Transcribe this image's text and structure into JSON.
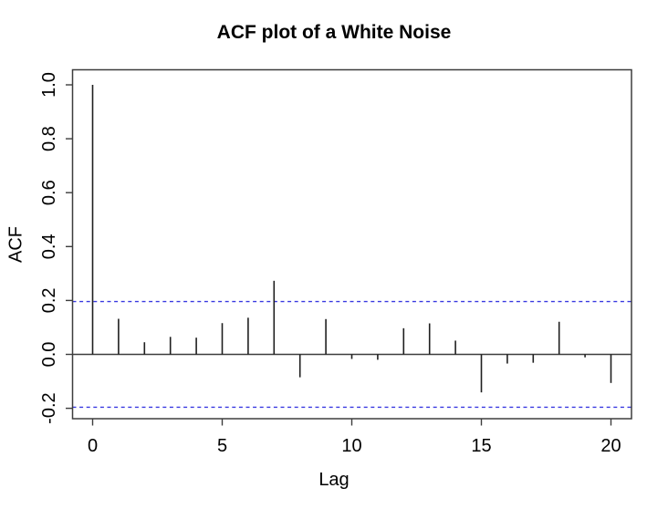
{
  "chart_data": {
    "type": "bar",
    "style": "acf-stem-plot",
    "title": "ACF plot of a White Noise",
    "xlabel": "Lag",
    "ylabel": "ACF",
    "x": [
      0,
      1,
      2,
      3,
      4,
      5,
      6,
      7,
      8,
      9,
      10,
      11,
      12,
      13,
      14,
      15,
      16,
      17,
      18,
      19,
      20
    ],
    "values": [
      1.0,
      0.132,
      0.045,
      0.065,
      0.062,
      0.116,
      0.136,
      0.273,
      -0.085,
      0.131,
      -0.017,
      -0.02,
      0.097,
      0.115,
      0.051,
      -0.141,
      -0.034,
      -0.031,
      0.121,
      -0.011,
      -0.106
    ],
    "conf_band_upper": 0.196,
    "conf_band_lower": -0.196,
    "x_ticks": [
      0,
      5,
      10,
      15,
      20
    ],
    "x_tick_labels": [
      "0",
      "5",
      "10",
      "15",
      "20"
    ],
    "y_ticks": [
      1.0,
      0.8,
      0.6,
      0.4,
      0.2,
      0.0,
      -0.2
    ],
    "y_tick_labels": [
      "1.0",
      "0.8",
      "0.6",
      "0.4",
      "0.2",
      "0.0",
      "-0.2"
    ],
    "xlim": [
      -0.8,
      20.8
    ],
    "ylim": [
      -0.24,
      1.06
    ],
    "zero_line": 0.0,
    "grid": false,
    "legend_position": "none",
    "colors": {
      "spike": "#1f1f1f",
      "axis": "#3d3d3d",
      "conf_band": "#3939e0",
      "text": "#000000",
      "background": "#ffffff"
    }
  }
}
